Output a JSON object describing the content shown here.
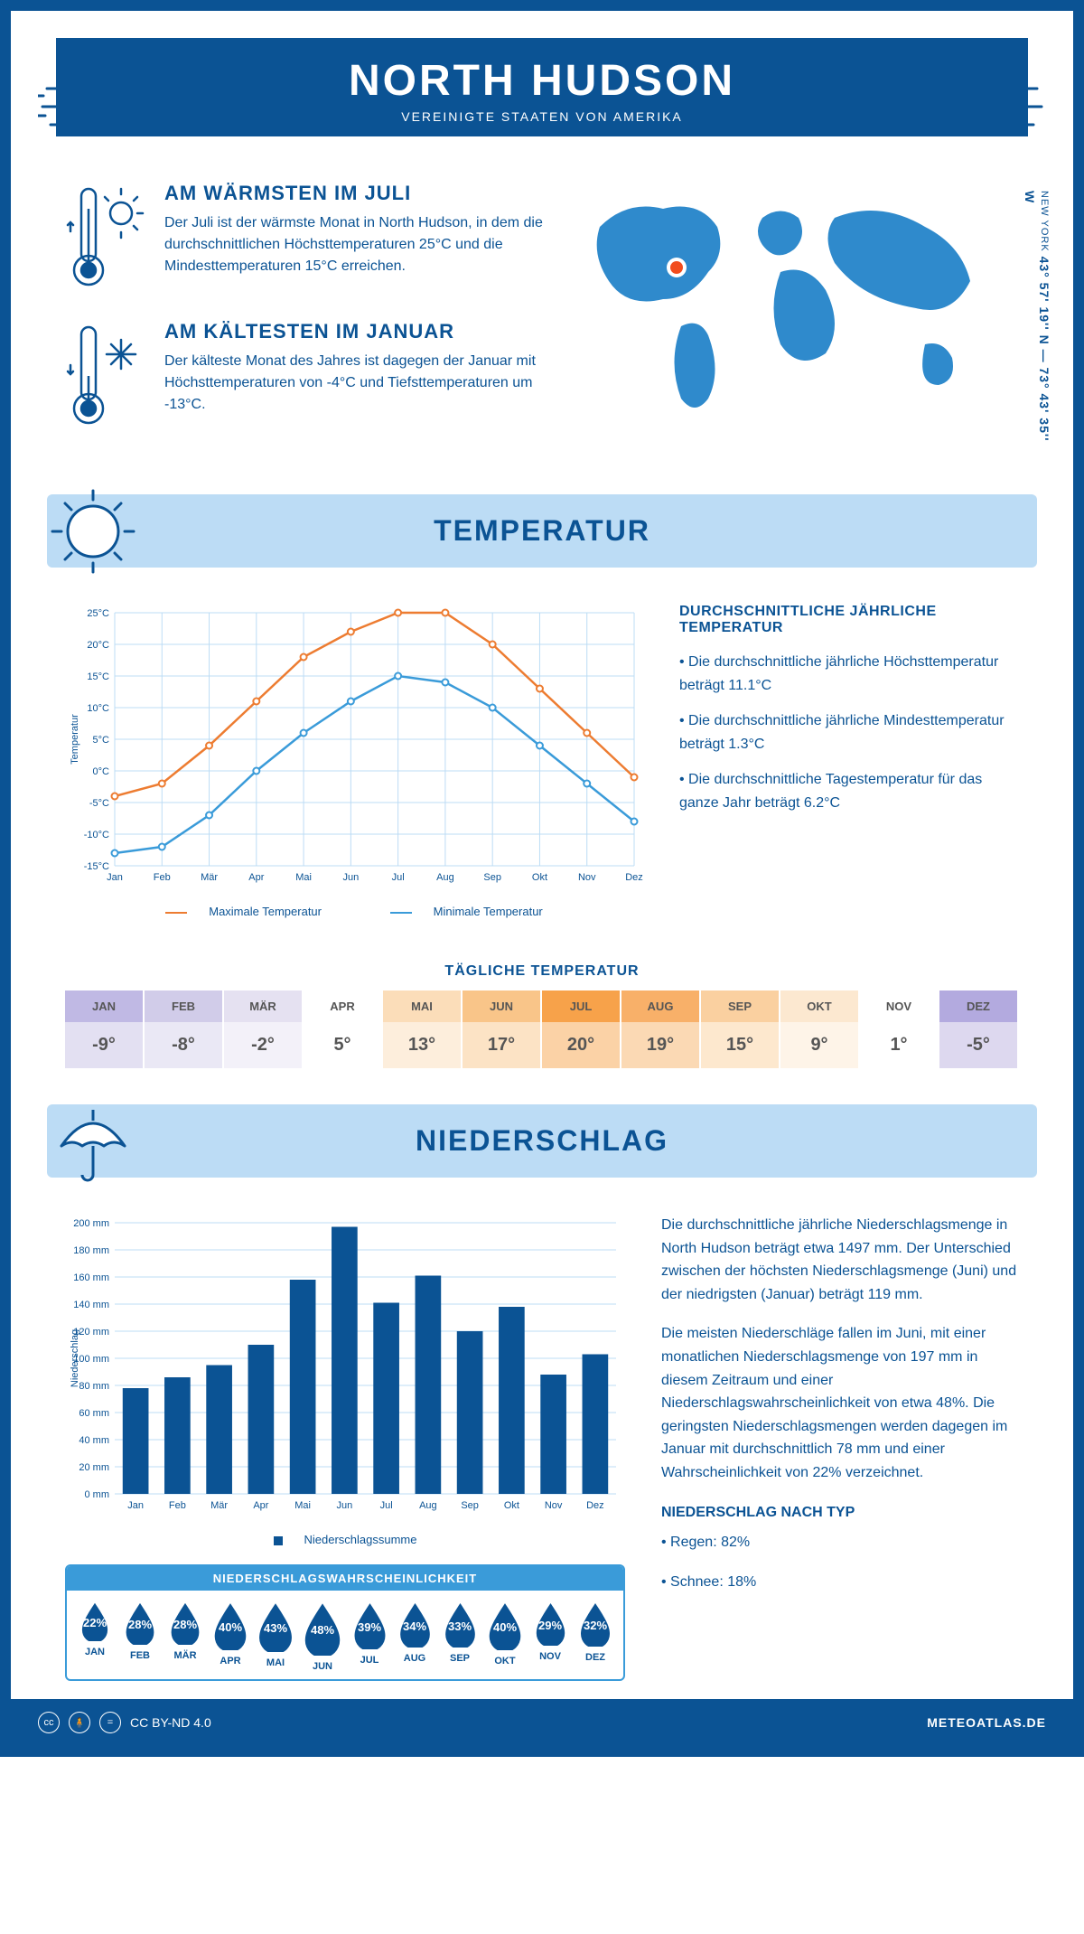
{
  "header": {
    "title": "NORTH HUDSON",
    "subtitle": "VEREINIGTE STAATEN VON AMERIKA"
  },
  "coords": {
    "text": "43° 57' 19'' N — 73° 43' 35'' W",
    "region": "NEW YORK"
  },
  "facts": {
    "warm": {
      "title": "AM WÄRMSTEN IM JULI",
      "body": "Der Juli ist der wärmste Monat in North Hudson, in dem die durchschnittlichen Höchsttemperaturen 25°C und die Mindesttemperaturen 15°C erreichen."
    },
    "cold": {
      "title": "AM KÄLTESTEN IM JANUAR",
      "body": "Der kälteste Monat des Jahres ist dagegen der Januar mit Höchsttemperaturen von -4°C und Tiefsttemperaturen um -13°C."
    }
  },
  "sections": {
    "temp": "TEMPERATUR",
    "precip": "NIEDERSCHLAG"
  },
  "temp_chart": {
    "type": "line",
    "ylabel": "Temperatur",
    "months": [
      "Jan",
      "Feb",
      "Mär",
      "Apr",
      "Mai",
      "Jun",
      "Jul",
      "Aug",
      "Sep",
      "Okt",
      "Nov",
      "Dez"
    ],
    "yticks": [
      -15,
      -10,
      -5,
      0,
      5,
      10,
      15,
      20,
      25
    ],
    "ytick_labels": [
      "-15°C",
      "-10°C",
      "-5°C",
      "0°C",
      "5°C",
      "10°C",
      "15°C",
      "20°C",
      "25°C"
    ],
    "max_series": [
      -4,
      -2,
      4,
      11,
      18,
      22,
      25,
      25,
      20,
      13,
      6,
      -1
    ],
    "min_series": [
      -13,
      -12,
      -7,
      0,
      6,
      11,
      15,
      14,
      10,
      4,
      -2,
      -8
    ],
    "max_color": "#ed7c31",
    "min_color": "#3a9bd9",
    "grid_color": "#bcdcf5",
    "legend_max": "Maximale Temperatur",
    "legend_min": "Minimale Temperatur"
  },
  "temp_stats": {
    "title": "DURCHSCHNITTLICHE JÄHRLICHE TEMPERATUR",
    "items": [
      "• Die durchschnittliche jährliche Höchsttemperatur beträgt 11.1°C",
      "• Die durchschnittliche jährliche Mindesttemperatur beträgt 1.3°C",
      "• Die durchschnittliche Tagestemperatur für das ganze Jahr beträgt 6.2°C"
    ]
  },
  "daily": {
    "title": "TÄGLICHE TEMPERATUR",
    "months": [
      "JAN",
      "FEB",
      "MÄR",
      "APR",
      "MAI",
      "JUN",
      "JUL",
      "AUG",
      "SEP",
      "OKT",
      "NOV",
      "DEZ"
    ],
    "values": [
      "-9°",
      "-8°",
      "-2°",
      "5°",
      "13°",
      "17°",
      "20°",
      "19°",
      "15°",
      "9°",
      "1°",
      "-5°"
    ],
    "head_colors": [
      "#c0b9e4",
      "#d1cce9",
      "#e5e1f1",
      "#ffffff",
      "#fbddb9",
      "#f9c589",
      "#f7a24a",
      "#f8b069",
      "#fad0a0",
      "#fce8d0",
      "#ffffff",
      "#b3aadf"
    ],
    "body_colors": [
      "#e3e0f2",
      "#eae8f5",
      "#f3f1f9",
      "#ffffff",
      "#fdeedc",
      "#fce3c5",
      "#fbd2a6",
      "#fbd9b4",
      "#fde8ce",
      "#fef4e8",
      "#ffffff",
      "#ddd8ef"
    ],
    "text_color": "#555555"
  },
  "precip_chart": {
    "type": "bar",
    "ylabel": "Niederschlag",
    "months": [
      "Jan",
      "Feb",
      "Mär",
      "Apr",
      "Mai",
      "Jun",
      "Jul",
      "Aug",
      "Sep",
      "Okt",
      "Nov",
      "Dez"
    ],
    "values": [
      78,
      86,
      95,
      110,
      158,
      197,
      141,
      161,
      120,
      138,
      88,
      103
    ],
    "yticks": [
      0,
      20,
      40,
      60,
      80,
      100,
      120,
      140,
      160,
      180,
      200
    ],
    "ytick_labels": [
      "0 mm",
      "20 mm",
      "40 mm",
      "60 mm",
      "80 mm",
      "100 mm",
      "120 mm",
      "140 mm",
      "160 mm",
      "180 mm",
      "200 mm"
    ],
    "bar_color": "#0b5394",
    "grid_color": "#bcdcf5",
    "legend": "Niederschlagssumme"
  },
  "precip_text": {
    "p1": "Die durchschnittliche jährliche Niederschlagsmenge in North Hudson beträgt etwa 1497 mm. Der Unterschied zwischen der höchsten Niederschlagsmenge (Juni) und der niedrigsten (Januar) beträgt 119 mm.",
    "p2": "Die meisten Niederschläge fallen im Juni, mit einer monatlichen Niederschlagsmenge von 197 mm in diesem Zeitraum und einer Niederschlagswahrscheinlichkeit von etwa 48%. Die geringsten Niederschlagsmengen werden dagegen im Januar mit durchschnittlich 78 mm und einer Wahrscheinlichkeit von 22% verzeichnet.",
    "type_title": "NIEDERSCHLAG NACH TYP",
    "type_items": [
      "• Regen: 82%",
      "• Schnee: 18%"
    ]
  },
  "prob": {
    "title": "NIEDERSCHLAGSWAHRSCHEINLICHKEIT",
    "months": [
      "JAN",
      "FEB",
      "MÄR",
      "APR",
      "MAI",
      "JUN",
      "JUL",
      "AUG",
      "SEP",
      "OKT",
      "NOV",
      "DEZ"
    ],
    "values": [
      "22%",
      "28%",
      "28%",
      "40%",
      "43%",
      "48%",
      "39%",
      "34%",
      "33%",
      "40%",
      "29%",
      "32%"
    ],
    "sizes": [
      38,
      42,
      42,
      48,
      50,
      54,
      47,
      45,
      45,
      48,
      43,
      44
    ],
    "drop_color": "#0b5394"
  },
  "footer": {
    "license": "CC BY-ND 4.0",
    "site": "METEOATLAS.DE"
  },
  "colors": {
    "primary": "#0b5394",
    "light": "#bcdcf5",
    "accent": "#3a9bd9",
    "map": "#2f8acc",
    "marker": "#f24c1d"
  }
}
